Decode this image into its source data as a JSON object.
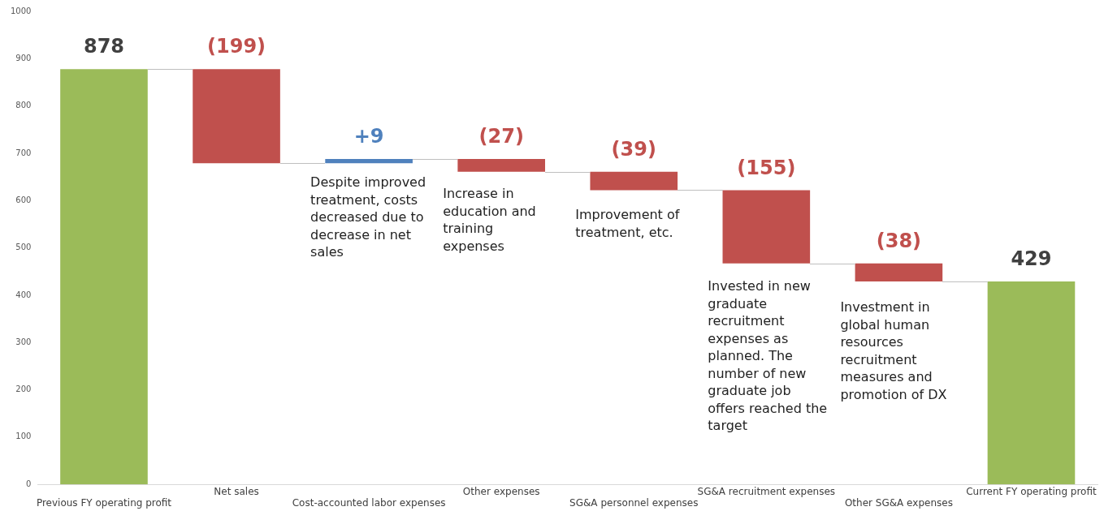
{
  "chart_data": {
    "type": "bar",
    "categories": [
      "Previous FY operating profit",
      "Net sales",
      "Cost-accounted labor expenses",
      "Other expenses",
      "SG&A personnel expenses",
      "SG&A recruitment expenses",
      "Other SG&A expenses",
      "Current FY operating profit"
    ],
    "values": [
      878,
      -199,
      9,
      -27,
      -39,
      -155,
      -38,
      429
    ],
    "base": [
      0,
      878,
      679,
      688,
      661,
      622,
      467,
      0
    ],
    "colors": [
      "#9bbb59",
      "#c0504d",
      "#4f81bd",
      "#c0504d",
      "#c0504d",
      "#c0504d",
      "#c0504d",
      "#9bbb59"
    ],
    "value_labels": [
      "878",
      "(199)",
      "+9",
      "(27)",
      "(39)",
      "(155)",
      "(38)",
      "429"
    ],
    "ylim": [
      0,
      1000
    ],
    "yticks": [
      0,
      100,
      200,
      300,
      400,
      500,
      600,
      700,
      800,
      900,
      {
        "value": 1000,
        "label": "1000"
      }
    ],
    "grid": false,
    "legend": false,
    "annotations": [
      "Despite improved treatment, costs decreased due to decrease in net sales",
      "Increase in education and training expenses",
      "Improvement of treatment, etc.",
      "Invested in new graduate recruitment expenses as planned. The number of new graduate job offers reached the target",
      "Investment in global human resources recruitment measures and promotion of DX"
    ]
  }
}
